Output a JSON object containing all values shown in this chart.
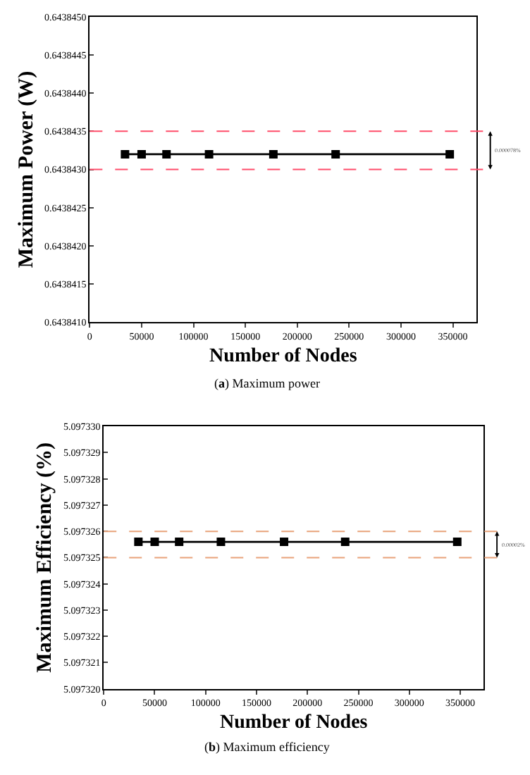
{
  "chart_data": [
    {
      "type": "line",
      "xlabel": "Number of Nodes",
      "ylabel": "Maximum Power (W)",
      "x": [
        34000,
        50000,
        74000,
        115000,
        177000,
        237000,
        347000
      ],
      "series": [
        {
          "color": "#000000",
          "values": [
            0.6438432,
            0.6438432,
            0.6438432,
            0.6438432,
            0.6438432,
            0.6438432,
            0.6438432
          ]
        }
      ],
      "marker": "square",
      "line_style": "solid",
      "xlim": [
        0,
        373000
      ],
      "xticks": [
        0,
        50000,
        100000,
        150000,
        200000,
        250000,
        300000,
        350000
      ],
      "ylim": [
        0.643841,
        0.643845
      ],
      "yticks": [
        {
          "value": 0.643841,
          "label": "0.6438410"
        },
        {
          "value": 0.6438415,
          "label": "0.6438415"
        },
        {
          "value": 0.643842,
          "label": "0.6438420"
        },
        {
          "value": 0.6438425,
          "label": "0.6438425"
        },
        {
          "value": 0.643843,
          "label": "0.6438430"
        },
        {
          "value": 0.6438435,
          "label": "0.6438435"
        },
        {
          "value": 0.643844,
          "label": "0.6438440"
        },
        {
          "value": 0.6438445,
          "label": "0.6438445"
        },
        {
          "value": 0.643845,
          "label": "0.6438450"
        }
      ],
      "ref_lines": [
        {
          "axis": "y",
          "value": 0.6438435,
          "color": "#ff4d6a",
          "line_style": "dashed"
        },
        {
          "axis": "y",
          "value": 0.643843,
          "color": "#ff4d6a",
          "line_style": "dashed"
        }
      ],
      "annotations": [
        "0.000078%",
        "(a) Maximum power"
      ]
    },
    {
      "type": "line",
      "xlabel": "Number of Nodes",
      "ylabel": "Maximum Efficiency (%)",
      "x": [
        34000,
        50000,
        74000,
        115000,
        177000,
        237000,
        347000
      ],
      "series": [
        {
          "color": "#000000",
          "values": [
            5.0973256,
            5.0973256,
            5.0973256,
            5.0973256,
            5.0973256,
            5.0973256,
            5.0973256
          ]
        }
      ],
      "marker": "square",
      "line_style": "solid",
      "xlim": [
        0,
        373000
      ],
      "xticks": [
        0,
        50000,
        100000,
        150000,
        200000,
        250000,
        300000,
        350000
      ],
      "ylim": [
        5.09732,
        5.09733
      ],
      "yticks": [
        {
          "value": 5.09732,
          "label": "5.097320"
        },
        {
          "value": 5.097321,
          "label": "5.097321"
        },
        {
          "value": 5.097322,
          "label": "5.097322"
        },
        {
          "value": 5.097323,
          "label": "5.097323"
        },
        {
          "value": 5.097324,
          "label": "5.097324"
        },
        {
          "value": 5.097325,
          "label": "5.097325"
        },
        {
          "value": 5.097326,
          "label": "5.097326"
        },
        {
          "value": 5.097327,
          "label": "5.097327"
        },
        {
          "value": 5.097328,
          "label": "5.097328"
        },
        {
          "value": 5.097329,
          "label": "5.097329"
        },
        {
          "value": 5.09733,
          "label": "5.097330"
        }
      ],
      "ref_lines": [
        {
          "axis": "y",
          "value": 5.097326,
          "color": "#e8a27a",
          "line_style": "dashed"
        },
        {
          "axis": "y",
          "value": 5.097325,
          "color": "#e8a27a",
          "line_style": "dashed"
        }
      ],
      "annotations": [
        "0.00002%",
        "(b) Maximum efficiency"
      ]
    }
  ]
}
